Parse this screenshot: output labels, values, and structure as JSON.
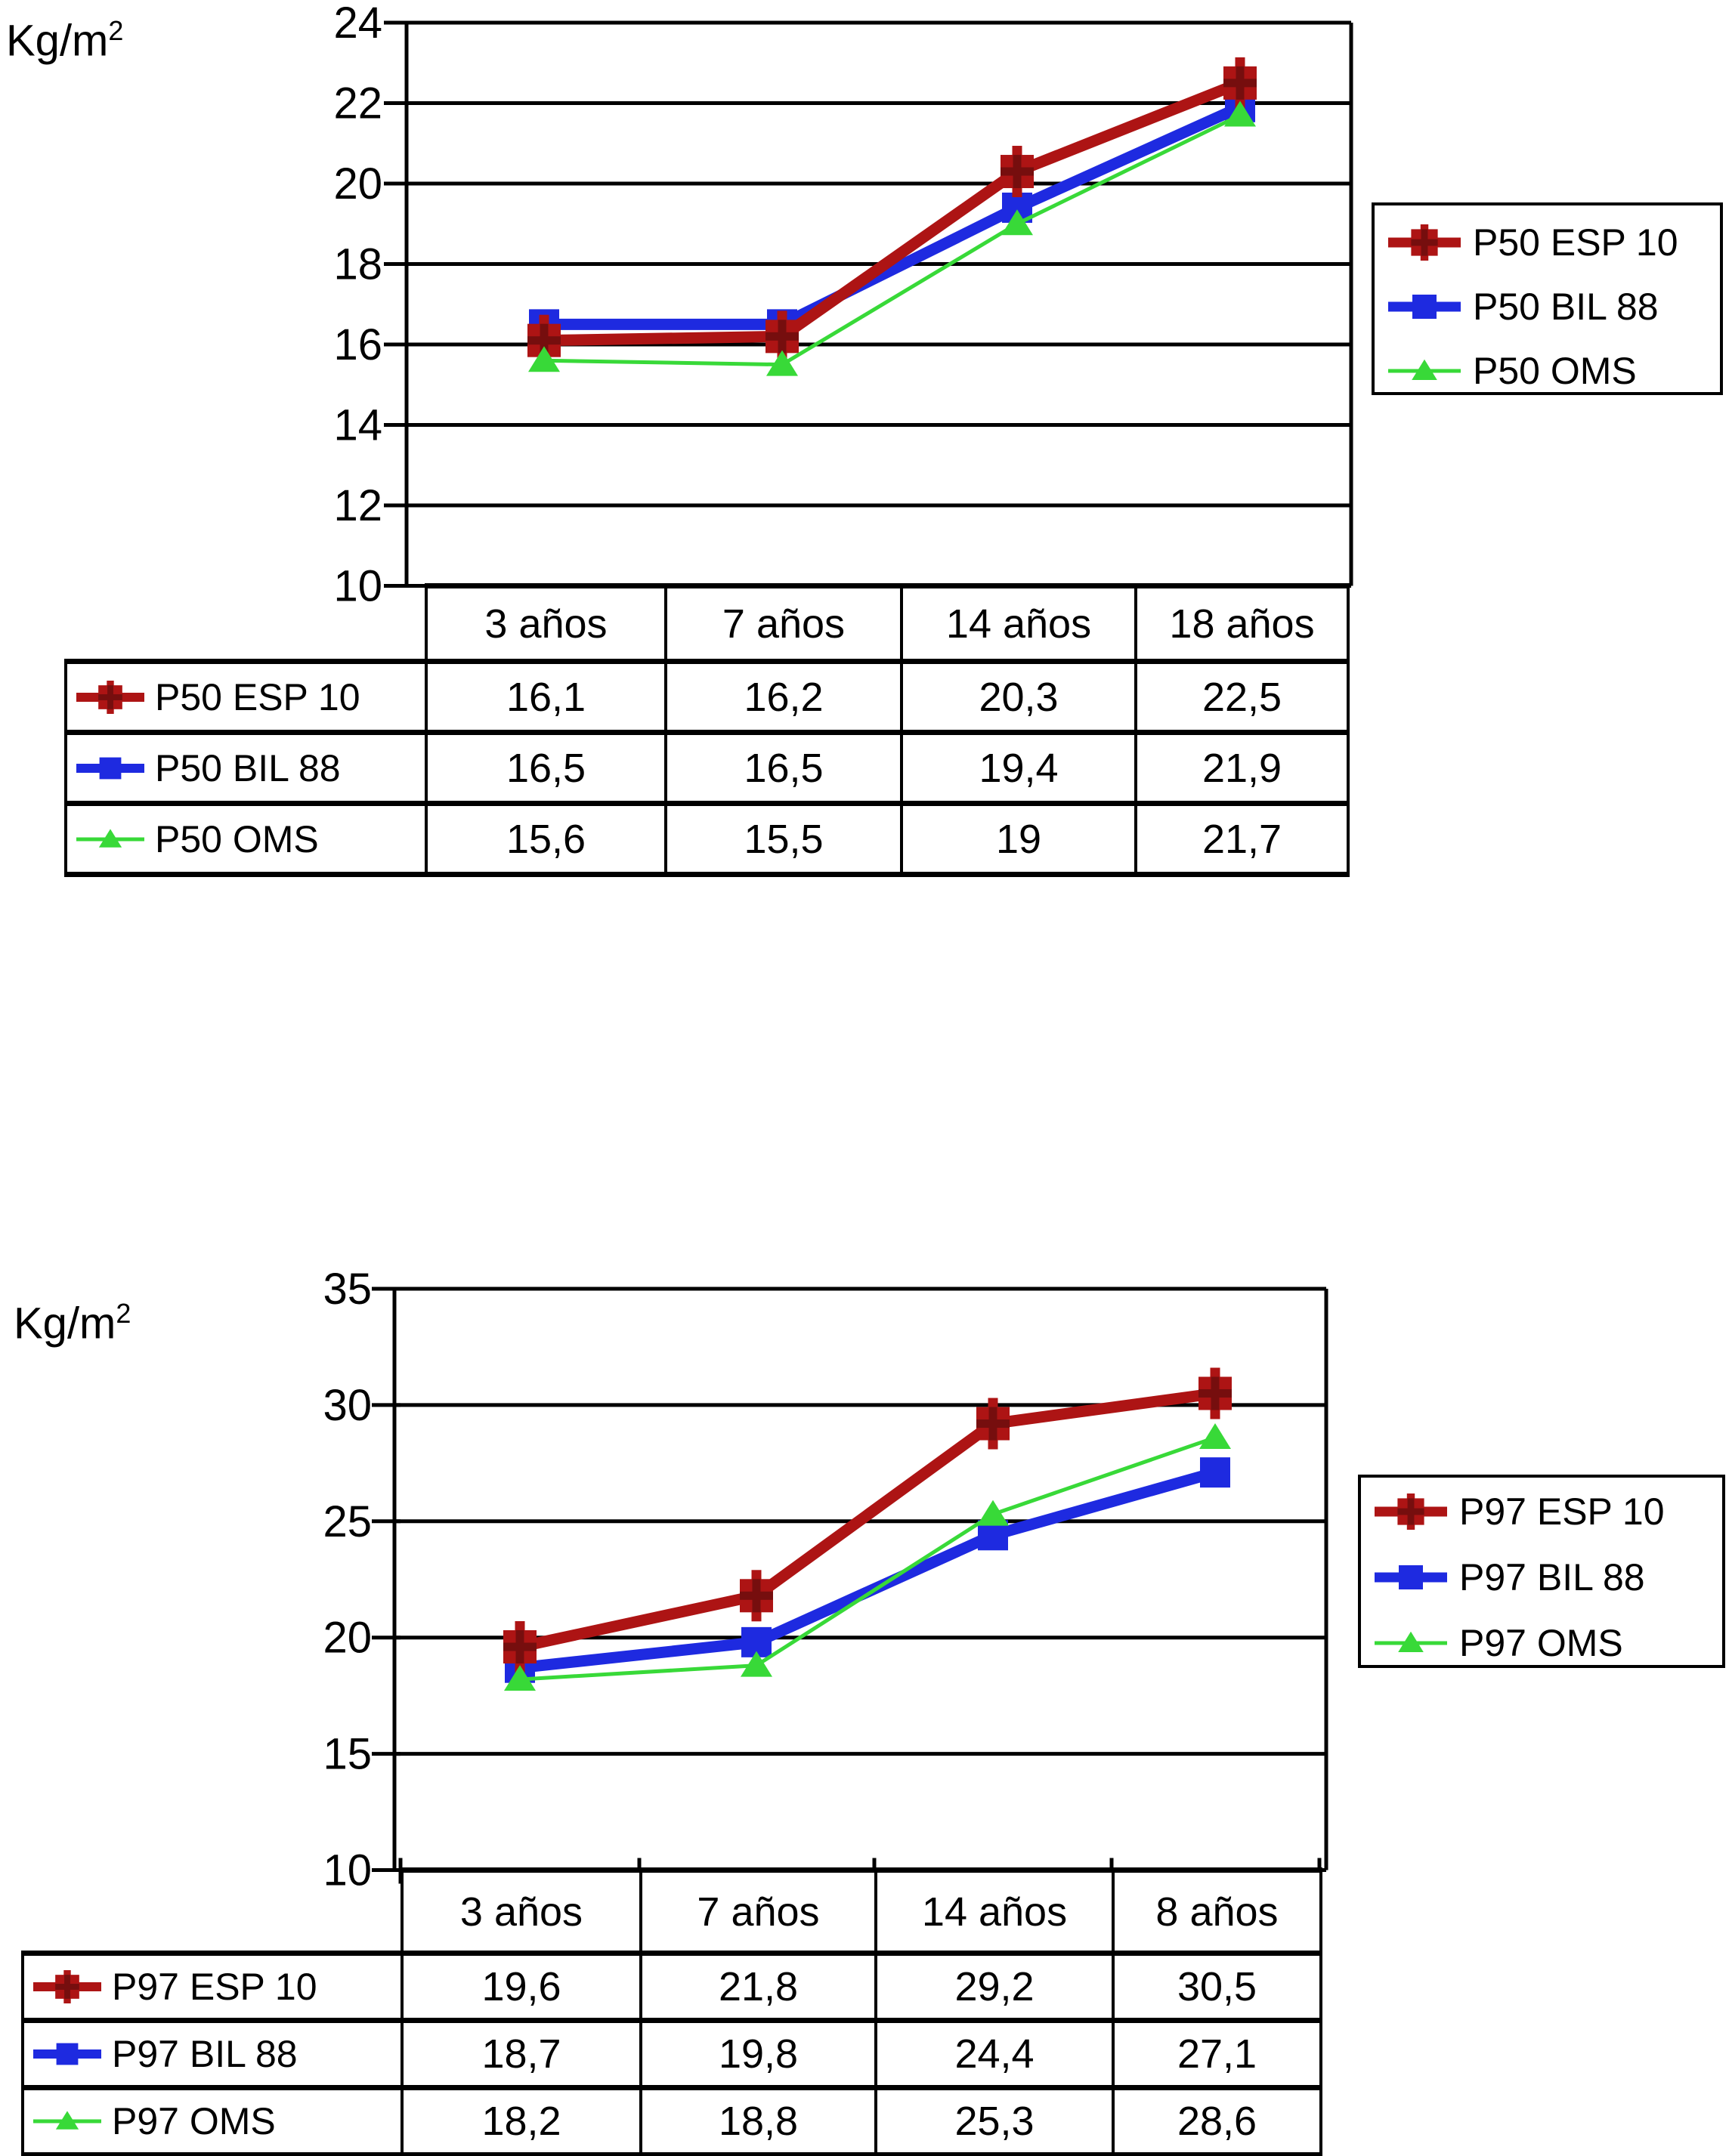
{
  "page": {
    "background": "#ffffff"
  },
  "chart_data": [
    {
      "type": "line",
      "title": "",
      "unit": {
        "base": "Kg/m",
        "exp": "2"
      },
      "ylabel": "Kg/m2",
      "xlabel": "",
      "categories": [
        "3 años",
        "7 años",
        "14 años",
        "18 años"
      ],
      "yticks": [
        "24",
        "22",
        "20",
        "18",
        "16",
        "14",
        "12",
        "10"
      ],
      "ylim": [
        10,
        24
      ],
      "grid": true,
      "legend_position": "right",
      "series": [
        {
          "name": "P50 ESP 10",
          "color": "#ad1414",
          "marker": "square-cross",
          "values": [
            16.1,
            16.2,
            20.3,
            22.5
          ],
          "display": [
            "16,1",
            "16,2",
            "20,3",
            "22,5"
          ]
        },
        {
          "name": "P50 BIL 88",
          "color": "#1e2ae0",
          "marker": "square",
          "values": [
            16.5,
            16.5,
            19.4,
            21.9
          ],
          "display": [
            "16,5",
            "16,5",
            "19,4",
            "21,9"
          ]
        },
        {
          "name": "P50 OMS",
          "color": "#38d938",
          "marker": "triangle",
          "values": [
            15.6,
            15.5,
            19,
            21.7
          ],
          "display": [
            "15,6",
            "15,5",
            "19",
            "21,7"
          ]
        }
      ]
    },
    {
      "type": "line",
      "title": "",
      "unit": {
        "base": "Kg/m",
        "exp": "2"
      },
      "ylabel": "Kg/m2",
      "xlabel": "",
      "categories": [
        "3 años",
        "7 años",
        "14 años",
        "8 años"
      ],
      "yticks": [
        "35",
        "30",
        "25",
        "20",
        "15",
        "10"
      ],
      "ylim": [
        10,
        35
      ],
      "grid": true,
      "legend_position": "right",
      "series": [
        {
          "name": "P97 ESP 10",
          "color": "#ad1414",
          "marker": "square-cross",
          "values": [
            19.6,
            21.8,
            29.2,
            30.5
          ],
          "display": [
            "19,6",
            "21,8",
            "29,2",
            "30,5"
          ]
        },
        {
          "name": "P97 BIL 88",
          "color": "#1e2ae0",
          "marker": "square",
          "values": [
            18.7,
            19.8,
            24.4,
            27.1
          ],
          "display": [
            "18,7",
            "19,8",
            "24,4",
            "27,1"
          ]
        },
        {
          "name": "P97 OMS",
          "color": "#38d938",
          "marker": "triangle",
          "values": [
            18.2,
            18.8,
            25.3,
            28.6
          ],
          "display": [
            "18,2",
            "18,8",
            "25,3",
            "28,6"
          ]
        }
      ]
    }
  ]
}
